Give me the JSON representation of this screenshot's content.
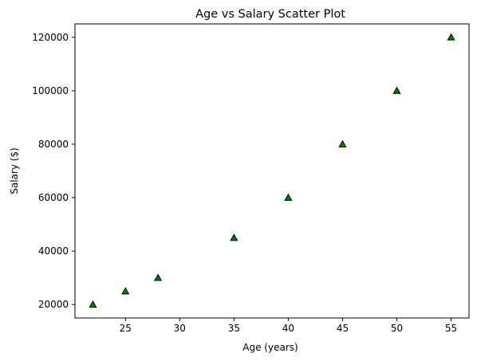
{
  "chart_data": {
    "type": "scatter",
    "title": "Age vs Salary Scatter Plot",
    "xlabel": "Age (years)",
    "ylabel": "Salary ($)",
    "xlim": [
      20.35,
      56.65
    ],
    "ylim": [
      15000,
      125000
    ],
    "xticks": [
      25,
      30,
      35,
      40,
      45,
      50,
      55
    ],
    "yticks": [
      20000,
      40000,
      60000,
      80000,
      100000,
      120000
    ],
    "grid": false,
    "marker": "triangle-up",
    "marker_color": "#008000",
    "marker_edge_color": "#000000",
    "series": [
      {
        "x": [
          22,
          25,
          28,
          35,
          40,
          45,
          50,
          55
        ],
        "y": [
          20000,
          25000,
          30000,
          45000,
          60000,
          80000,
          100000,
          120000
        ]
      }
    ]
  }
}
